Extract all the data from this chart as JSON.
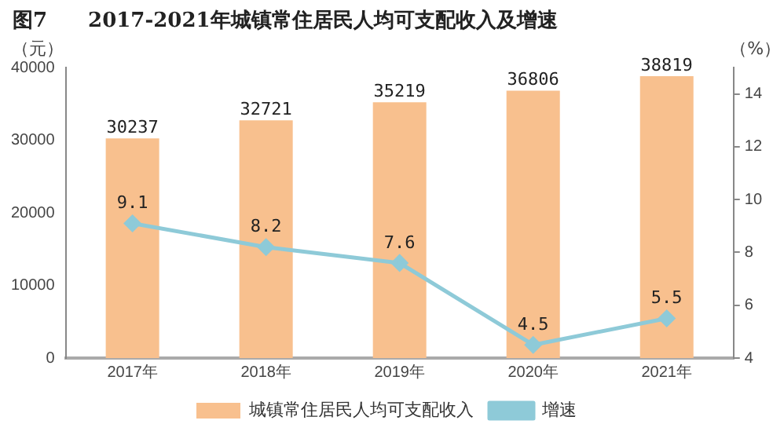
{
  "chart_data": {
    "type": "bar",
    "title": "图7　　2017-2021年城镇常住居民人均可支配收入及增速",
    "ylabel": "（元）",
    "y2label": "（%）",
    "categories": [
      "2017年",
      "2018年",
      "2019年",
      "2020年",
      "2021年"
    ],
    "series": [
      {
        "name": "城镇常住居民人均可支配收入",
        "color": "#f8c08e",
        "values": [
          30237,
          32721,
          35219,
          36806,
          38819
        ]
      },
      {
        "name": "增速",
        "type": "line",
        "axis": "y2",
        "color": "#8ecad8",
        "values": [
          9.1,
          8.2,
          7.6,
          4.5,
          5.5
        ]
      }
    ],
    "ylim": [
      0,
      40000
    ],
    "yticks": [
      0,
      10000,
      20000,
      30000,
      40000
    ],
    "y2lim": [
      4,
      15
    ],
    "y2ticks": [
      4,
      6,
      8,
      10,
      12,
      14
    ],
    "data_labels": true,
    "grid": false,
    "legend": "bottom",
    "marker": "diamond",
    "line_style": "solid"
  }
}
